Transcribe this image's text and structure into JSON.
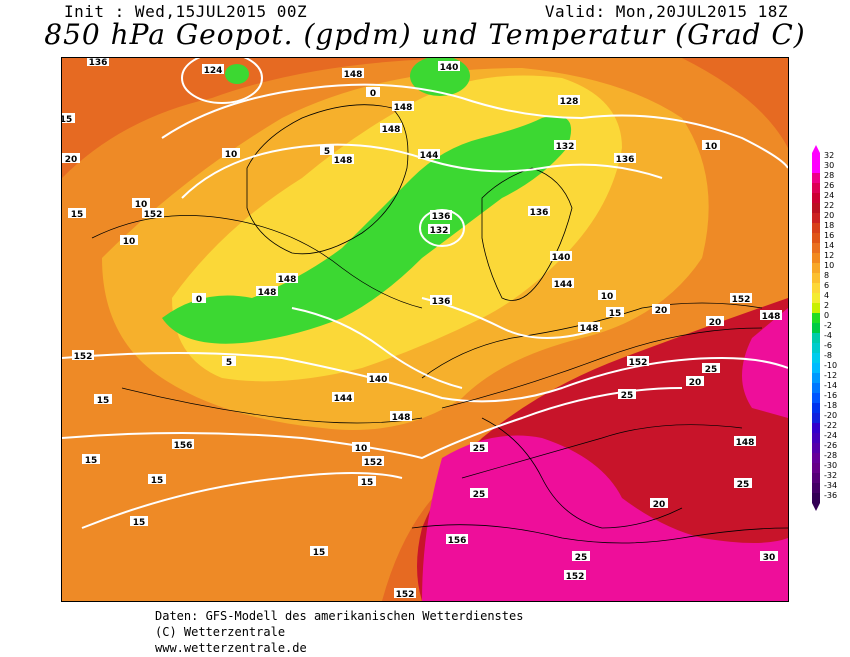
{
  "header": {
    "init": "Init : Wed,15JUL2015 00Z",
    "valid": "Valid: Mon,20JUL2015 18Z",
    "title": "850 hPa Geopot. (gpdm) und Temperatur (Grad C)"
  },
  "map": {
    "geopotential_labels": [
      "124",
      "136",
      "140",
      "144",
      "148",
      "152",
      "156",
      "132",
      "128"
    ],
    "temperature_labels": [
      "0",
      "5",
      "10",
      "15",
      "20",
      "25",
      "30"
    ]
  },
  "legend": {
    "values": [
      "32",
      "30",
      "28",
      "26",
      "24",
      "22",
      "20",
      "18",
      "16",
      "14",
      "12",
      "10",
      "8",
      "6",
      "4",
      "2",
      "0",
      "-2",
      "-4",
      "-6",
      "-8",
      "-10",
      "-12",
      "-14",
      "-16",
      "-18",
      "-20",
      "-22",
      "-24",
      "-26",
      "-28",
      "-30",
      "-32",
      "-34",
      "-36"
    ],
    "colors": [
      "#ff00ff",
      "#ff00ff",
      "#ee0088",
      "#dd0055",
      "#cc0033",
      "#bb1122",
      "#cc2222",
      "#d8401a",
      "#e05518",
      "#ea7020",
      "#f28a20",
      "#f8a828",
      "#fcc030",
      "#fdd838",
      "#f4ec30",
      "#c8f000",
      "#22dd22",
      "#00cc44",
      "#00ccaa",
      "#00cccc",
      "#00ccee",
      "#00bbff",
      "#0099ff",
      "#0077ff",
      "#0055ff",
      "#0033ee",
      "#1122dd",
      "#3300cc",
      "#4400bb",
      "#5500aa",
      "#660099",
      "#660088",
      "#550077",
      "#440066",
      "#330055"
    ]
  },
  "footer": {
    "line1": "Daten: GFS-Modell des amerikanischen Wetterdienstes",
    "line2": "(C) Wetterzentrale",
    "line3": "www.wetterzentrale.de"
  }
}
